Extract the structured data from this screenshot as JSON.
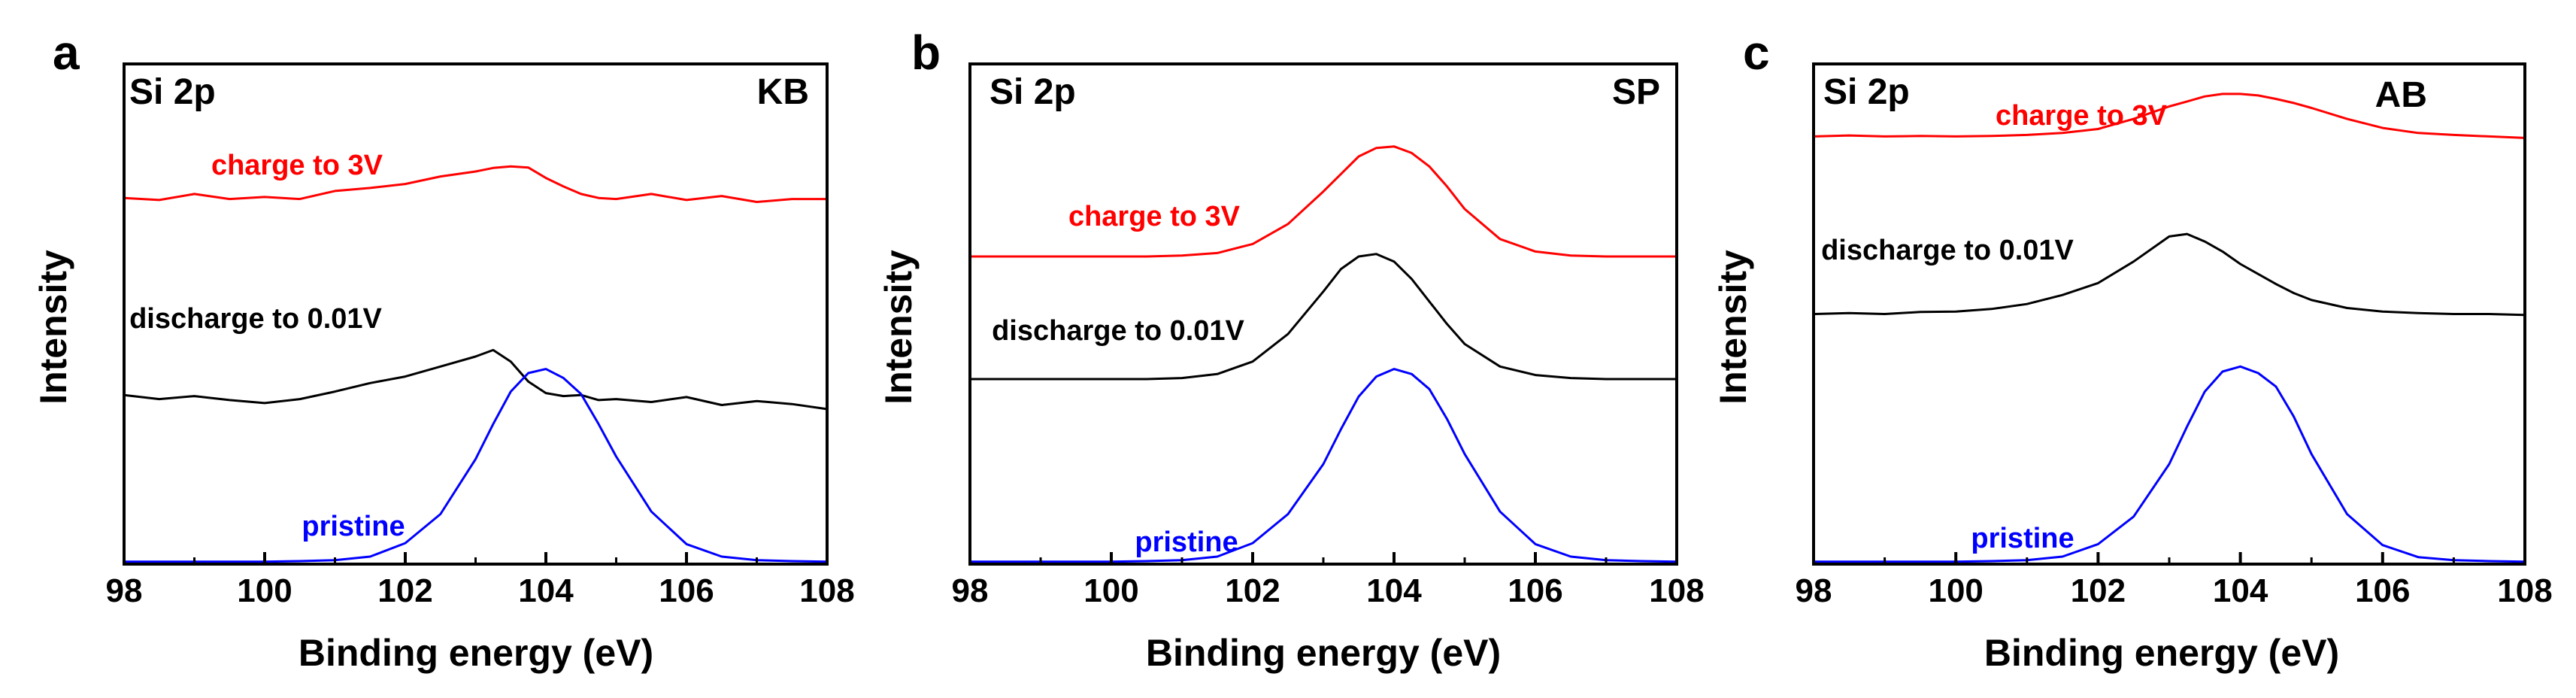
{
  "chart_data": [
    {
      "type": "line",
      "panel_label": "a",
      "region_label": "Si 2p",
      "corner_label": "KB",
      "xlabel": "Binding energy (eV)",
      "ylabel": "Intensity",
      "xlim": [
        98,
        108
      ],
      "ylim": [
        0,
        10
      ],
      "xticks": [
        "98",
        "100",
        "102",
        "104",
        "106",
        "108"
      ],
      "x": [
        98,
        98.5,
        99,
        99.5,
        100,
        100.5,
        101,
        101.5,
        102,
        102.5,
        103,
        103.25,
        103.5,
        103.75,
        104,
        104.25,
        104.5,
        104.75,
        105,
        105.5,
        106,
        106.5,
        107,
        107.5,
        108
      ],
      "series": [
        {
          "name": "charge to 3V",
          "color": "#ff0000",
          "values": [
            7.32,
            7.28,
            7.4,
            7.3,
            7.34,
            7.3,
            7.46,
            7.52,
            7.6,
            7.75,
            7.85,
            7.92,
            7.95,
            7.93,
            7.72,
            7.55,
            7.4,
            7.32,
            7.3,
            7.4,
            7.28,
            7.36,
            7.24,
            7.3,
            7.3
          ]
        },
        {
          "name": "discharge to 0.01V",
          "color": "#000000",
          "values": [
            3.38,
            3.3,
            3.36,
            3.28,
            3.22,
            3.3,
            3.45,
            3.62,
            3.75,
            3.95,
            4.15,
            4.28,
            4.05,
            3.65,
            3.42,
            3.36,
            3.38,
            3.28,
            3.3,
            3.24,
            3.34,
            3.18,
            3.26,
            3.2,
            3.1
          ]
        },
        {
          "name": "pristine",
          "color": "#0000ff",
          "values": [
            0.05,
            0.05,
            0.05,
            0.05,
            0.05,
            0.06,
            0.08,
            0.15,
            0.42,
            1.0,
            2.1,
            2.8,
            3.45,
            3.82,
            3.9,
            3.72,
            3.4,
            2.8,
            2.15,
            1.05,
            0.4,
            0.15,
            0.08,
            0.06,
            0.05
          ]
        }
      ]
    },
    {
      "type": "line",
      "panel_label": "b",
      "region_label": "Si 2p",
      "corner_label": "SP",
      "xlabel": "Binding energy (eV)",
      "ylabel": "Intensity",
      "xlim": [
        98,
        108
      ],
      "ylim": [
        0,
        10
      ],
      "xticks": [
        "98",
        "100",
        "102",
        "104",
        "106",
        "108"
      ],
      "x": [
        98,
        98.5,
        99,
        99.5,
        100,
        100.5,
        101,
        101.5,
        102,
        102.5,
        103,
        103.25,
        103.5,
        103.75,
        104,
        104.25,
        104.5,
        104.75,
        105,
        105.5,
        106,
        106.5,
        107,
        107.5,
        108
      ],
      "series": [
        {
          "name": "charge to 3V",
          "color": "#ff0000",
          "values": [
            6.15,
            6.15,
            6.15,
            6.15,
            6.15,
            6.15,
            6.17,
            6.22,
            6.4,
            6.8,
            7.45,
            7.8,
            8.15,
            8.32,
            8.35,
            8.22,
            7.95,
            7.55,
            7.1,
            6.5,
            6.25,
            6.17,
            6.15,
            6.15,
            6.15
          ]
        },
        {
          "name": "discharge to 0.01V",
          "color": "#000000",
          "values": [
            3.7,
            3.7,
            3.7,
            3.7,
            3.7,
            3.7,
            3.72,
            3.8,
            4.05,
            4.6,
            5.45,
            5.9,
            6.15,
            6.2,
            6.05,
            5.7,
            5.25,
            4.8,
            4.4,
            3.95,
            3.78,
            3.72,
            3.7,
            3.7,
            3.7
          ]
        },
        {
          "name": "pristine",
          "color": "#0000ff",
          "values": [
            0.05,
            0.05,
            0.05,
            0.05,
            0.05,
            0.06,
            0.08,
            0.15,
            0.42,
            1.0,
            2.0,
            2.7,
            3.35,
            3.75,
            3.9,
            3.8,
            3.5,
            2.9,
            2.2,
            1.05,
            0.4,
            0.15,
            0.08,
            0.06,
            0.05
          ]
        }
      ]
    },
    {
      "type": "line",
      "panel_label": "c",
      "region_label": "Si 2p",
      "corner_label": "AB",
      "xlabel": "Binding energy (eV)",
      "ylabel": "Intensity",
      "xlim": [
        98,
        108
      ],
      "ylim": [
        0,
        10
      ],
      "xticks": [
        "98",
        "100",
        "102",
        "104",
        "106",
        "108"
      ],
      "x": [
        98,
        98.5,
        99,
        99.5,
        100,
        100.5,
        101,
        101.5,
        102,
        102.5,
        103,
        103.25,
        103.5,
        103.75,
        104,
        104.25,
        104.5,
        104.75,
        105,
        105.5,
        106,
        106.5,
        107,
        107.5,
        108
      ],
      "series": [
        {
          "name": "charge to 3V",
          "color": "#ff0000",
          "values": [
            8.55,
            8.57,
            8.55,
            8.56,
            8.55,
            8.56,
            8.58,
            8.62,
            8.7,
            8.9,
            9.15,
            9.25,
            9.35,
            9.4,
            9.4,
            9.37,
            9.3,
            9.22,
            9.12,
            8.9,
            8.72,
            8.62,
            8.58,
            8.55,
            8.52
          ]
        },
        {
          "name": "discharge to 0.01V",
          "color": "#000000",
          "values": [
            5.0,
            5.02,
            5.0,
            5.04,
            5.05,
            5.1,
            5.2,
            5.38,
            5.62,
            6.05,
            6.55,
            6.6,
            6.45,
            6.25,
            6.0,
            5.8,
            5.6,
            5.42,
            5.28,
            5.12,
            5.05,
            5.02,
            5.0,
            5.0,
            4.98
          ]
        },
        {
          "name": "pristine",
          "color": "#0000ff",
          "values": [
            0.05,
            0.05,
            0.05,
            0.05,
            0.05,
            0.06,
            0.08,
            0.15,
            0.4,
            0.95,
            2.0,
            2.75,
            3.45,
            3.85,
            3.95,
            3.82,
            3.55,
            2.95,
            2.2,
            1.0,
            0.38,
            0.14,
            0.08,
            0.06,
            0.05
          ]
        }
      ]
    }
  ]
}
